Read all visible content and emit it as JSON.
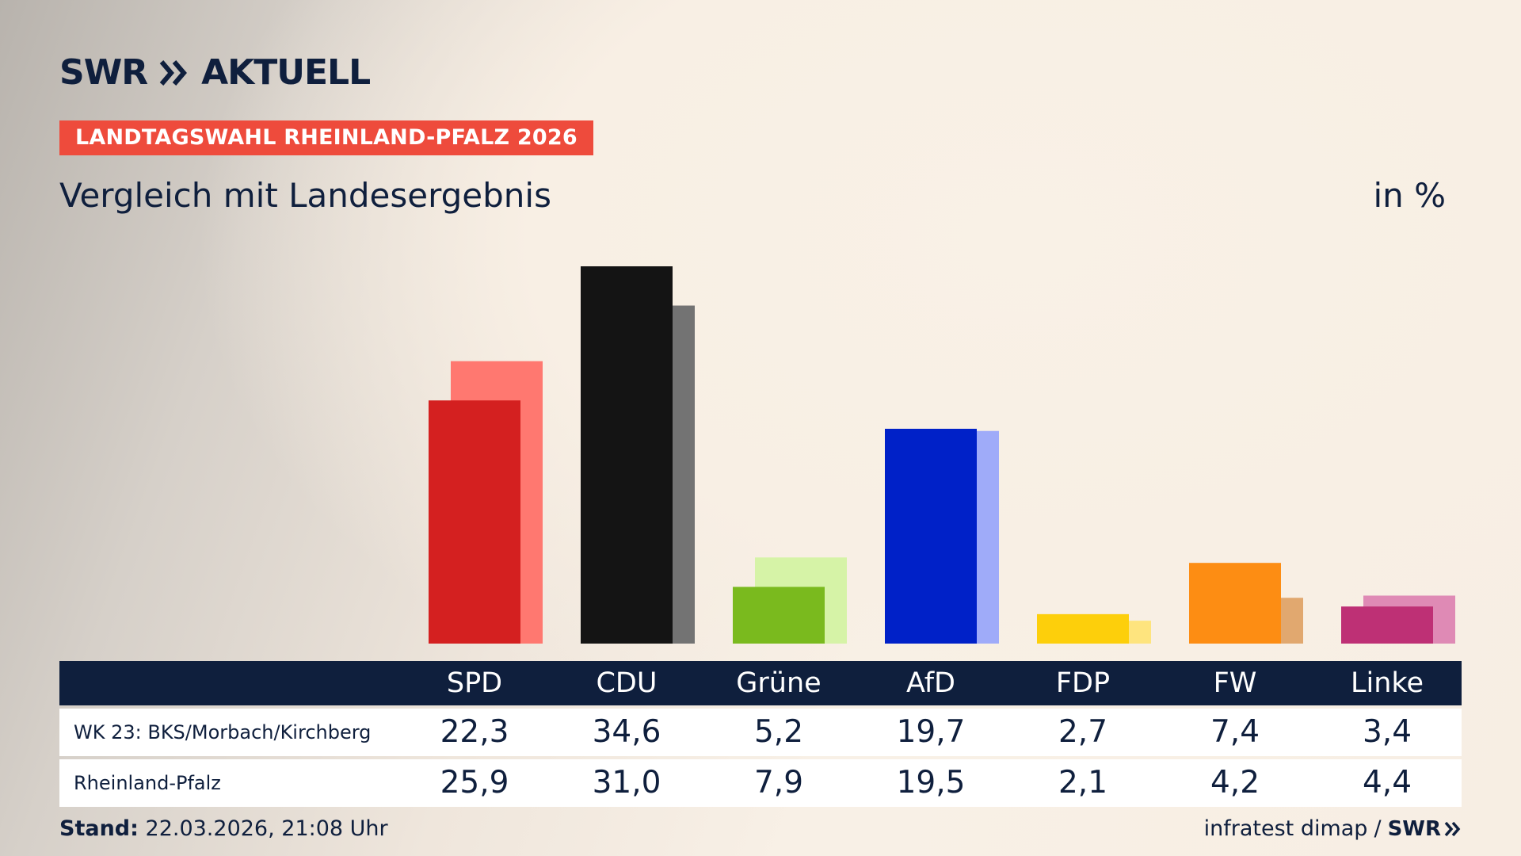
{
  "brand": {
    "swr": "SWR",
    "aktuell": "AKTUELL"
  },
  "kicker": "LANDTAGSWAHL RHEINLAND-PFALZ 2026",
  "subtitle": "Vergleich mit Landesergebnis",
  "unit": "in %",
  "chart_data": {
    "type": "bar",
    "categories": [
      "SPD",
      "CDU",
      "Grüne",
      "AfD",
      "FDP",
      "FW",
      "Linke"
    ],
    "series": [
      {
        "name": "WK 23: BKS/Morbach/Kirchberg",
        "values": [
          22.3,
          34.6,
          5.2,
          19.7,
          2.7,
          7.4,
          3.4
        ]
      },
      {
        "name": "Rheinland-Pfalz",
        "values": [
          25.9,
          31.0,
          7.9,
          19.5,
          2.1,
          4.2,
          4.4
        ]
      }
    ],
    "colors_primary": [
      "#d42020",
      "#141414",
      "#7aba1e",
      "#0021c8",
      "#fdcf0b",
      "#fd8d13",
      "#be3075"
    ],
    "colors_secondary": [
      "#ff7870",
      "#737373",
      "#d6f3a7",
      "#9fabf9",
      "#fee47e",
      "#e1a86f",
      "#df8ab5"
    ],
    "ylim": [
      0,
      34.6
    ]
  },
  "table": {
    "headers": [
      "SPD",
      "CDU",
      "Grüne",
      "AfD",
      "FDP",
      "FW",
      "Linke"
    ],
    "rows": [
      {
        "label": "WK 23: BKS/Morbach/Kirchberg",
        "values": [
          "22,3",
          "34,6",
          "5,2",
          "19,7",
          "2,7",
          "7,4",
          "3,4"
        ]
      },
      {
        "label": "Rheinland-Pfalz",
        "values": [
          "25,9",
          "31,0",
          "7,9",
          "19,5",
          "2,1",
          "4,2",
          "4,4"
        ]
      }
    ]
  },
  "footer": {
    "stand_label": "Stand:",
    "stand_value": "22.03.2026, 21:08 Uhr",
    "source": "infratest dimap",
    "separator": "/",
    "source_brand": "SWR"
  }
}
